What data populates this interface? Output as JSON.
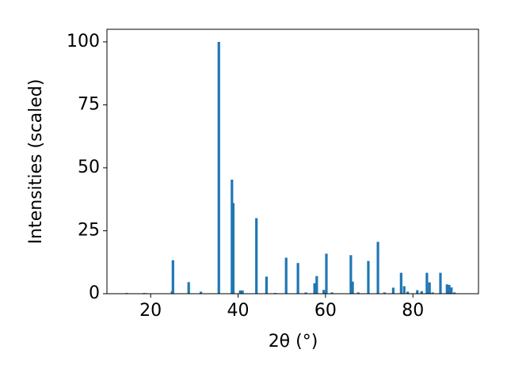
{
  "chart_data": {
    "type": "bar",
    "x_label": "2θ (°)",
    "y_label": "Intensities (scaled)",
    "x": [
      14.5,
      18.5,
      19.0,
      24.9,
      25.1,
      28.7,
      31.5,
      35.6,
      38.6,
      38.9,
      40.5,
      41.0,
      44.2,
      46.5,
      48.5,
      51.0,
      53.7,
      55.5,
      57.5,
      58.0,
      59.6,
      60.2,
      61.5,
      65.8,
      66.2,
      67.5,
      69.8,
      72.0,
      73.5,
      75.5,
      77.3,
      78.0,
      78.8,
      81.0,
      82.0,
      83.2,
      83.8,
      84.5,
      86.3,
      87.8,
      88.3,
      88.8,
      89.5
    ],
    "values": [
      0.3,
      0.3,
      0.2,
      1.0,
      13.3,
      4.6,
      0.8,
      100,
      45.3,
      36,
      1.3,
      1.3,
      30,
      6.8,
      0.3,
      14.3,
      12.2,
      0.5,
      4.2,
      7,
      1.5,
      15.9,
      0.5,
      15.3,
      4.8,
      0.5,
      13,
      20.6,
      0.5,
      2.4,
      8.3,
      3,
      0.8,
      1.4,
      1,
      8.3,
      4.5,
      0.5,
      8.3,
      3.7,
      3.5,
      2.5,
      0.5
    ],
    "color": "#1f77b4",
    "xlim": [
      10,
      95
    ],
    "xticks": [
      20,
      40,
      60,
      80
    ],
    "ylim": [
      0,
      105
    ],
    "yticks": [
      0,
      25,
      50,
      75,
      100
    ],
    "grid": false
  }
}
